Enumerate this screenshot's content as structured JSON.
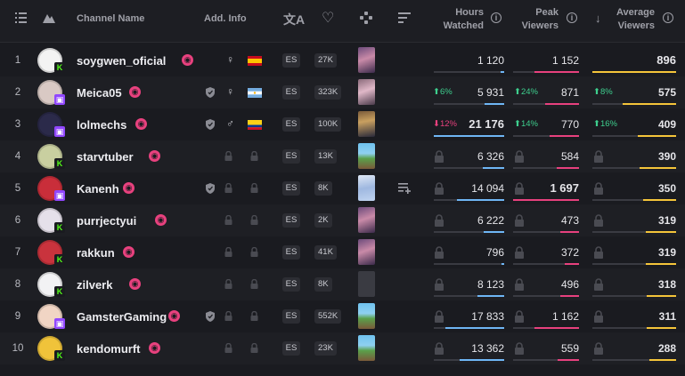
{
  "colors": {
    "hours_bar": "#6fb6f5",
    "peak_bar": "#e8417e",
    "avg_bar": "#f5c53a",
    "kick": "#53fc18",
    "twitch": "#9147ff",
    "live": "#e8417e"
  },
  "header": {
    "channel_name": "Channel Name",
    "add_info": "Add. Info",
    "hours_watched_1": "Hours",
    "hours_watched_2": "Watched",
    "peak_viewers_1": "Peak",
    "peak_viewers_2": "Viewers",
    "avg_viewers_1": "Average",
    "avg_viewers_2": "Viewers",
    "info_glyph": "i",
    "sort_glyph": "↓"
  },
  "rows": [
    {
      "rank": "1",
      "name": "soygwen_oficial",
      "platform": "kick",
      "partner": false,
      "gender": "♀",
      "flag": "es",
      "lang": "ES",
      "followers": "27K",
      "game": "justchatting",
      "hours": "1 120",
      "hours_delta": "",
      "peak": "1 152",
      "peak_delta": "",
      "avg": "896",
      "avg_delta": "",
      "avatar_color": "#f3f3f3",
      "hours_frac": 0.05,
      "peak_frac": 0.68,
      "avg_frac": 1.0
    },
    {
      "rank": "2",
      "name": "Meica05",
      "platform": "twitch",
      "partner": true,
      "gender": "♀",
      "flag": "ar",
      "lang": "ES",
      "followers": "323K",
      "game": "justchatting2",
      "hours": "5 931",
      "hours_delta": "6%",
      "hours_dir": "up",
      "peak": "871",
      "peak_delta": "24%",
      "peak_dir": "up",
      "avg": "575",
      "avg_delta": "8%",
      "avg_dir": "up",
      "avatar_color": "#d9c9c4",
      "hours_frac": 0.28,
      "peak_frac": 0.51,
      "avg_frac": 0.64
    },
    {
      "rank": "3",
      "name": "lolmechs",
      "platform": "twitch",
      "partner": true,
      "gender": "♂",
      "flag": "co",
      "lang": "ES",
      "followers": "100K",
      "game": "lol",
      "hours": "21 176",
      "hours_delta": "12%",
      "hours_dir": "down",
      "peak": "770",
      "peak_delta": "14%",
      "peak_dir": "up",
      "avg": "409",
      "avg_delta": "16%",
      "avg_dir": "up",
      "avatar_color": "#2b2a4a",
      "hours_frac": 1.0,
      "peak_frac": 0.45,
      "avg_frac": 0.46
    },
    {
      "rank": "4",
      "name": "starvtuber",
      "platform": "kick",
      "partner": false,
      "gender": "",
      "flag": "",
      "lang": "ES",
      "followers": "13K",
      "game": "minecraft",
      "hours": "6 326",
      "hours_delta": "",
      "peak": "584",
      "peak_delta": "",
      "avg": "390",
      "avg_delta": "",
      "avatar_color": "#c9cfa0",
      "hours_frac": 0.3,
      "peak_frac": 0.34,
      "avg_frac": 0.44
    },
    {
      "rank": "5",
      "name": "Kanenh",
      "platform": "twitch",
      "partner": true,
      "gender": "",
      "flag": "",
      "lang": "ES",
      "followers": "8K",
      "game": "honkai",
      "hours": "14 094",
      "hours_delta": "",
      "peak": "1 697",
      "peak_delta": "",
      "avg": "350",
      "avg_delta": "",
      "avatar_color": "#c92e3a",
      "hours_frac": 0.67,
      "peak_frac": 1.0,
      "avg_frac": 0.39
    },
    {
      "rank": "6",
      "name": "purrjectyui",
      "platform": "kick",
      "partner": false,
      "gender": "",
      "flag": "",
      "lang": "ES",
      "followers": "2K",
      "game": "justchatting",
      "hours": "6 222",
      "hours_delta": "",
      "peak": "473",
      "peak_delta": "",
      "avg": "319",
      "avg_delta": "",
      "avatar_color": "#e5e0ea",
      "hours_frac": 0.29,
      "peak_frac": 0.28,
      "avg_frac": 0.36
    },
    {
      "rank": "7",
      "name": "rakkun",
      "platform": "kick",
      "partner": false,
      "gender": "",
      "flag": "",
      "lang": "ES",
      "followers": "41K",
      "game": "justchatting",
      "hours": "796",
      "hours_delta": "",
      "peak": "372",
      "peak_delta": "",
      "avg": "319",
      "avg_delta": "",
      "avatar_color": "#c9333d",
      "hours_frac": 0.04,
      "peak_frac": 0.22,
      "avg_frac": 0.36
    },
    {
      "rank": "8",
      "name": "zilverk",
      "platform": "kick",
      "partner": false,
      "gender": "",
      "flag": "",
      "lang": "ES",
      "followers": "8K",
      "game": "unknown",
      "hours": "8 123",
      "hours_delta": "",
      "peak": "496",
      "peak_delta": "",
      "avg": "318",
      "avg_delta": "",
      "avatar_color": "#f2f2f4",
      "hours_frac": 0.38,
      "peak_frac": 0.29,
      "avg_frac": 0.35
    },
    {
      "rank": "9",
      "name": "GamsterGaming",
      "platform": "twitch",
      "partner": true,
      "gender": "",
      "flag": "",
      "lang": "ES",
      "followers": "552K",
      "game": "minecraft",
      "hours": "17 833",
      "hours_delta": "",
      "peak": "1 162",
      "peak_delta": "",
      "avg": "311",
      "avg_delta": "",
      "avatar_color": "#f1d5c4",
      "hours_frac": 0.84,
      "peak_frac": 0.68,
      "avg_frac": 0.35
    },
    {
      "rank": "10",
      "name": "kendomurft",
      "platform": "kick",
      "partner": false,
      "gender": "",
      "flag": "",
      "lang": "ES",
      "followers": "23K",
      "game": "minecraft",
      "hours": "13 362",
      "hours_delta": "",
      "peak": "559",
      "peak_delta": "",
      "avg": "288",
      "avg_delta": "",
      "avatar_color": "#f0c33a",
      "hours_frac": 0.63,
      "peak_frac": 0.33,
      "avg_frac": 0.32
    }
  ]
}
